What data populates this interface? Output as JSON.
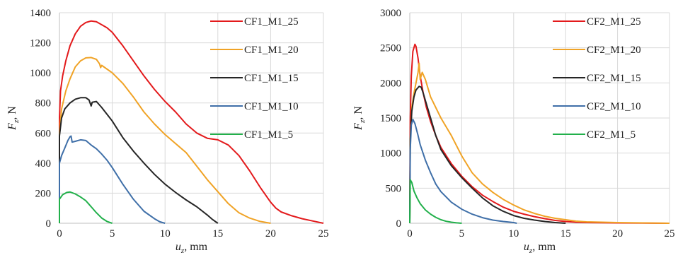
{
  "chart_data": [
    {
      "type": "line",
      "xlabel": "u",
      "xlabel_sub": "z",
      "xlabel_unit": ", mm",
      "ylabel": "F",
      "ylabel_sub": "z",
      "ylabel_unit": ", N",
      "xlim": [
        0,
        25
      ],
      "ylim": [
        0,
        1400
      ],
      "xticks": [
        0,
        5,
        10,
        15,
        20,
        25
      ],
      "yticks": [
        0,
        200,
        400,
        600,
        800,
        1000,
        1200,
        1400
      ],
      "grid": true,
      "legend_position": "top-right",
      "series": [
        {
          "name": "CF1_M1_25",
          "color": "#e31a1c",
          "points": [
            [
              0,
              0
            ],
            [
              0,
              700
            ],
            [
              0.1,
              880
            ],
            [
              0.3,
              980
            ],
            [
              0.6,
              1080
            ],
            [
              1,
              1180
            ],
            [
              1.5,
              1260
            ],
            [
              2,
              1310
            ],
            [
              2.5,
              1335
            ],
            [
              3,
              1345
            ],
            [
              3.5,
              1340
            ],
            [
              4,
              1320
            ],
            [
              4.5,
              1300
            ],
            [
              5,
              1270
            ],
            [
              6,
              1180
            ],
            [
              7,
              1080
            ],
            [
              8,
              980
            ],
            [
              9,
              890
            ],
            [
              10,
              810
            ],
            [
              11,
              740
            ],
            [
              12,
              660
            ],
            [
              13,
              600
            ],
            [
              14,
              565
            ],
            [
              15,
              555
            ],
            [
              16,
              520
            ],
            [
              17,
              450
            ],
            [
              18,
              350
            ],
            [
              19,
              240
            ],
            [
              20,
              140
            ],
            [
              20.5,
              100
            ],
            [
              21,
              75
            ],
            [
              22,
              50
            ],
            [
              23,
              30
            ],
            [
              24,
              15
            ],
            [
              25,
              0
            ]
          ]
        },
        {
          "name": "CF1_M1_20",
          "color": "#f0a326",
          "points": [
            [
              0,
              0
            ],
            [
              0,
              600
            ],
            [
              0.2,
              760
            ],
            [
              0.6,
              880
            ],
            [
              1,
              960
            ],
            [
              1.5,
              1040
            ],
            [
              2,
              1080
            ],
            [
              2.5,
              1100
            ],
            [
              3,
              1102
            ],
            [
              3.5,
              1090
            ],
            [
              3.8,
              1060
            ],
            [
              3.9,
              1035
            ],
            [
              4,
              1050
            ],
            [
              5,
              1000
            ],
            [
              6,
              930
            ],
            [
              7,
              840
            ],
            [
              8,
              740
            ],
            [
              9,
              660
            ],
            [
              10,
              590
            ],
            [
              11,
              530
            ],
            [
              12,
              470
            ],
            [
              13,
              380
            ],
            [
              14,
              290
            ],
            [
              15,
              210
            ],
            [
              16,
              130
            ],
            [
              17,
              70
            ],
            [
              18,
              35
            ],
            [
              19,
              12
            ],
            [
              20,
              0
            ]
          ]
        },
        {
          "name": "CF1_M1_15",
          "color": "#262626",
          "points": [
            [
              0,
              0
            ],
            [
              0,
              580
            ],
            [
              0.2,
              700
            ],
            [
              0.5,
              760
            ],
            [
              1,
              800
            ],
            [
              1.5,
              825
            ],
            [
              2,
              835
            ],
            [
              2.5,
              835
            ],
            [
              2.8,
              820
            ],
            [
              3,
              780
            ],
            [
              3.1,
              805
            ],
            [
              3.5,
              810
            ],
            [
              4,
              770
            ],
            [
              5,
              680
            ],
            [
              6,
              570
            ],
            [
              7,
              480
            ],
            [
              8,
              400
            ],
            [
              9,
              325
            ],
            [
              10,
              260
            ],
            [
              11,
              205
            ],
            [
              12,
              155
            ],
            [
              13,
              110
            ],
            [
              14,
              55
            ],
            [
              14.5,
              25
            ],
            [
              15,
              0
            ]
          ]
        },
        {
          "name": "CF1_M1_10",
          "color": "#3f6fa8",
          "points": [
            [
              0,
              0
            ],
            [
              0,
              400
            ],
            [
              0.2,
              450
            ],
            [
              0.5,
              500
            ],
            [
              0.8,
              550
            ],
            [
              1,
              575
            ],
            [
              1.1,
              580
            ],
            [
              1.2,
              540
            ],
            [
              1.5,
              545
            ],
            [
              2,
              555
            ],
            [
              2.5,
              550
            ],
            [
              3,
              520
            ],
            [
              3.5,
              495
            ],
            [
              4,
              460
            ],
            [
              4.5,
              420
            ],
            [
              5,
              370
            ],
            [
              6,
              260
            ],
            [
              7,
              160
            ],
            [
              8,
              80
            ],
            [
              9,
              30
            ],
            [
              9.5,
              10
            ],
            [
              10,
              0
            ]
          ]
        },
        {
          "name": "CF1_M1_5",
          "color": "#22b04b",
          "points": [
            [
              0,
              0
            ],
            [
              0,
              160
            ],
            [
              0.3,
              190
            ],
            [
              0.7,
              205
            ],
            [
              1,
              208
            ],
            [
              1.5,
              195
            ],
            [
              2,
              175
            ],
            [
              2.5,
              150
            ],
            [
              3,
              110
            ],
            [
              3.5,
              70
            ],
            [
              4,
              35
            ],
            [
              4.5,
              12
            ],
            [
              5,
              0
            ]
          ]
        }
      ]
    },
    {
      "type": "line",
      "xlabel": "u",
      "xlabel_sub": "z",
      "xlabel_unit": ", mm",
      "ylabel": "F",
      "ylabel_sub": "z",
      "ylabel_unit": ", N",
      "xlim": [
        0,
        25
      ],
      "ylim": [
        0,
        3000
      ],
      "xticks": [
        0,
        5,
        10,
        15,
        20,
        25
      ],
      "yticks": [
        0,
        500,
        1000,
        1500,
        2000,
        2500,
        3000
      ],
      "grid": true,
      "legend_position": "top-right",
      "series": [
        {
          "name": "CF2_M1_25",
          "color": "#e31a1c",
          "points": [
            [
              0,
              0
            ],
            [
              0.05,
              1500
            ],
            [
              0.15,
              2100
            ],
            [
              0.3,
              2450
            ],
            [
              0.5,
              2550
            ],
            [
              0.6,
              2520
            ],
            [
              0.8,
              2350
            ],
            [
              1,
              2100
            ],
            [
              1.3,
              1850
            ],
            [
              1.6,
              1650
            ],
            [
              2,
              1450
            ],
            [
              2.5,
              1250
            ],
            [
              3,
              1080
            ],
            [
              4,
              850
            ],
            [
              5,
              670
            ],
            [
              6,
              520
            ],
            [
              7,
              400
            ],
            [
              8,
              310
            ],
            [
              9,
              230
            ],
            [
              10,
              170
            ],
            [
              11,
              130
            ],
            [
              12,
              95
            ],
            [
              13,
              65
            ],
            [
              14,
              40
            ],
            [
              15,
              25
            ],
            [
              16,
              15
            ],
            [
              17,
              10
            ],
            [
              20,
              5
            ],
            [
              25,
              0
            ]
          ]
        },
        {
          "name": "CF2_M1_20",
          "color": "#f0a326",
          "points": [
            [
              0,
              0
            ],
            [
              0.05,
              1200
            ],
            [
              0.2,
              1650
            ],
            [
              0.4,
              1850
            ],
            [
              0.6,
              2000
            ],
            [
              0.8,
              2150
            ],
            [
              0.9,
              2280
            ],
            [
              1,
              2050
            ],
            [
              1.2,
              2150
            ],
            [
              1.5,
              2050
            ],
            [
              2,
              1800
            ],
            [
              3,
              1500
            ],
            [
              4,
              1250
            ],
            [
              5,
              960
            ],
            [
              6,
              720
            ],
            [
              7,
              560
            ],
            [
              8,
              440
            ],
            [
              9,
              340
            ],
            [
              10,
              260
            ],
            [
              11,
              190
            ],
            [
              12,
              140
            ],
            [
              13,
              100
            ],
            [
              14,
              70
            ],
            [
              15,
              50
            ],
            [
              16,
              30
            ],
            [
              17,
              20
            ],
            [
              20,
              10
            ],
            [
              25,
              0
            ]
          ]
        },
        {
          "name": "CF2_M1_15",
          "color": "#262626",
          "points": [
            [
              0,
              0
            ],
            [
              0.05,
              1200
            ],
            [
              0.2,
              1600
            ],
            [
              0.4,
              1800
            ],
            [
              0.6,
              1900
            ],
            [
              0.9,
              1950
            ],
            [
              1.1,
              1940
            ],
            [
              1.3,
              1850
            ],
            [
              1.6,
              1700
            ],
            [
              2,
              1500
            ],
            [
              2.5,
              1250
            ],
            [
              3,
              1050
            ],
            [
              4,
              820
            ],
            [
              5,
              650
            ],
            [
              6,
              500
            ],
            [
              7,
              360
            ],
            [
              8,
              250
            ],
            [
              9,
              170
            ],
            [
              10,
              110
            ],
            [
              11,
              70
            ],
            [
              12,
              45
            ],
            [
              13,
              25
            ],
            [
              14,
              10
            ],
            [
              15,
              0
            ]
          ]
        },
        {
          "name": "CF2_M1_10",
          "color": "#3f6fa8",
          "points": [
            [
              0,
              0
            ],
            [
              0.05,
              1050
            ],
            [
              0.15,
              1400
            ],
            [
              0.3,
              1480
            ],
            [
              0.5,
              1420
            ],
            [
              0.8,
              1250
            ],
            [
              1,
              1120
            ],
            [
              1.5,
              900
            ],
            [
              2,
              720
            ],
            [
              2.5,
              560
            ],
            [
              3,
              450
            ],
            [
              4,
              300
            ],
            [
              5,
              200
            ],
            [
              6,
              130
            ],
            [
              7,
              80
            ],
            [
              8,
              45
            ],
            [
              9,
              25
            ],
            [
              10,
              10
            ],
            [
              10.3,
              0
            ]
          ]
        },
        {
          "name": "CF2_M1_5",
          "color": "#22b04b",
          "points": [
            [
              0,
              0
            ],
            [
              0.05,
              620
            ],
            [
              0.2,
              580
            ],
            [
              0.4,
              460
            ],
            [
              0.7,
              360
            ],
            [
              1,
              280
            ],
            [
              1.5,
              190
            ],
            [
              2,
              130
            ],
            [
              2.5,
              85
            ],
            [
              3,
              50
            ],
            [
              3.5,
              28
            ],
            [
              4,
              15
            ],
            [
              4.5,
              6
            ],
            [
              5,
              0
            ]
          ]
        }
      ]
    }
  ]
}
